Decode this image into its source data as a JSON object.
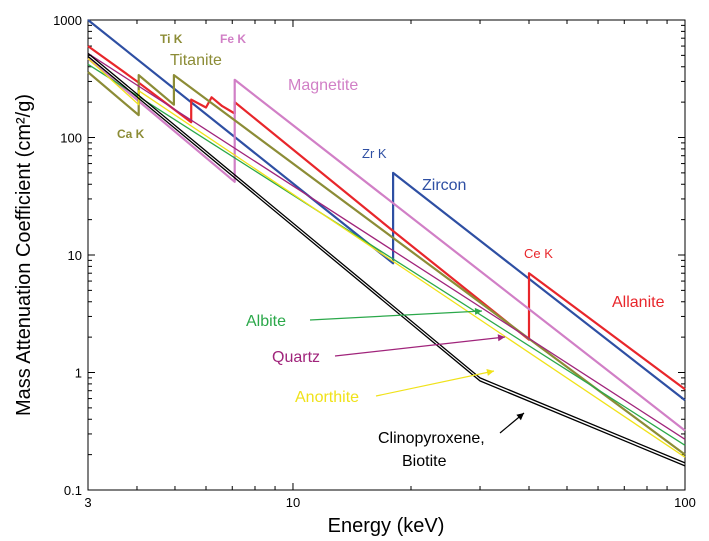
{
  "chart_data": {
    "type": "line",
    "title": "",
    "xlabel": "Energy (keV)",
    "ylabel": "Mass Attenuation Coefficient (cm²/g)",
    "xscale": "log",
    "yscale": "log",
    "xlim": [
      3,
      100
    ],
    "ylim": [
      0.1,
      1000
    ],
    "grid": false,
    "legend": "inline labels",
    "x_ticks": [
      3,
      10,
      100
    ],
    "x_tick_labels": [
      "3",
      "10",
      "100"
    ],
    "y_ticks": [
      0.1,
      1,
      10,
      100,
      1000
    ],
    "y_tick_labels": [
      "0.1",
      "1",
      "10",
      "100",
      "1000"
    ],
    "series": [
      {
        "name": "Zircon",
        "color": "#2e4fa3",
        "points": [
          [
            3,
            1000
          ],
          [
            18,
            8.5
          ],
          [
            18,
            50
          ],
          [
            100,
            0.58
          ]
        ]
      },
      {
        "name": "Allanite",
        "color": "#e8262b",
        "points": [
          [
            3,
            600
          ],
          [
            4,
            300
          ],
          [
            5.5,
            135
          ],
          [
            5.5,
            210
          ],
          [
            6,
            180
          ],
          [
            6.2,
            220
          ],
          [
            6.6,
            185
          ],
          [
            7.1,
            160
          ],
          [
            7.1,
            200
          ],
          [
            18,
            16
          ],
          [
            40,
            1.9
          ],
          [
            40,
            7
          ],
          [
            100,
            0.72
          ]
        ]
      },
      {
        "name": "Magnetite",
        "color": "#d17fc6",
        "points": [
          [
            3,
            470
          ],
          [
            7.1,
            42
          ],
          [
            7.1,
            310
          ],
          [
            100,
            0.32
          ]
        ]
      },
      {
        "name": "Titanite",
        "color": "#8c8c36",
        "points": [
          [
            3,
            360
          ],
          [
            4.04,
            155
          ],
          [
            4.04,
            340
          ],
          [
            4.97,
            190
          ],
          [
            4.97,
            340
          ],
          [
            100,
            0.2
          ]
        ]
      },
      {
        "name": "Albite",
        "color": "#2ba84a",
        "points": [
          [
            3,
            420
          ],
          [
            100,
            0.24
          ]
        ]
      },
      {
        "name": "Quartz",
        "color": "#a0247b",
        "points": [
          [
            3,
            520
          ],
          [
            100,
            0.27
          ]
        ]
      },
      {
        "name": "Anorthite",
        "color": "#f0e21a",
        "points": [
          [
            3,
            470
          ],
          [
            4.04,
            190
          ],
          [
            4.04,
            250
          ],
          [
            100,
            0.19
          ]
        ]
      },
      {
        "name": "Clinopyroxene, Biotite",
        "color": "#000000",
        "points": [
          [
            3,
            520
          ],
          [
            30,
            0.9
          ],
          [
            100,
            0.17
          ]
        ]
      }
    ],
    "annotations": [
      {
        "text": "Ti K",
        "color": "#8c8c36"
      },
      {
        "text": "Fe K",
        "color": "#d17fc6"
      },
      {
        "text": "Ca K",
        "color": "#8c8c36"
      },
      {
        "text": "Zr K",
        "color": "#2e4fa3"
      },
      {
        "text": "Ce K",
        "color": "#e8262b"
      }
    ],
    "series_labels": [
      {
        "text": "Titanite",
        "color": "#8c8c36"
      },
      {
        "text": "Magnetite",
        "color": "#d17fc6"
      },
      {
        "text": "Zircon",
        "color": "#2e4fa3"
      },
      {
        "text": "Allanite",
        "color": "#e8262b"
      },
      {
        "text": "Albite",
        "color": "#2ba84a"
      },
      {
        "text": "Quartz",
        "color": "#a0247b"
      },
      {
        "text": "Anorthite",
        "color": "#f0e21a"
      },
      {
        "text": "Clinopyroxene,",
        "color": "#000000"
      },
      {
        "text": "Biotite",
        "color": "#000000"
      }
    ]
  }
}
